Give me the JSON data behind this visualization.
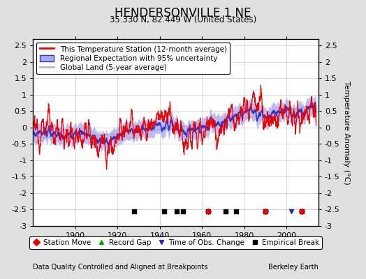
{
  "title": "HENDERSONVILLE 1 NE",
  "subtitle": "35.330 N, 82.449 W (United States)",
  "ylabel": "Temperature Anomaly (°C)",
  "xlabel_note": "Data Quality Controlled and Aligned at Breakpoints",
  "credit": "Berkeley Earth",
  "ylim": [
    -3.0,
    2.7
  ],
  "xlim": [
    1880,
    2015
  ],
  "yticks": [
    -3,
    -2.5,
    -2,
    -1.5,
    -1,
    -0.5,
    0,
    0.5,
    1,
    1.5,
    2,
    2.5
  ],
  "xticks": [
    1900,
    1920,
    1940,
    1960,
    1980,
    2000
  ],
  "bg_color": "#e0e0e0",
  "plot_bg_color": "#ffffff",
  "station_color": "#ee0000",
  "regional_color": "#3333cc",
  "regional_fill": "#aaaaee",
  "global_color": "#bbbbbb",
  "station_move_times": [
    1963,
    1990,
    2007
  ],
  "record_gap_times": [],
  "obs_change_times": [
    2002
  ],
  "empirical_break_times": [
    1928,
    1942,
    1948,
    1951,
    1963,
    1971,
    1976,
    1990,
    2007
  ],
  "legend_items": [
    "This Temperature Station (12-month average)",
    "Regional Expectation with 95% uncertainty",
    "Global Land (5-year average)"
  ],
  "marker_legend_items": [
    "Station Move",
    "Record Gap",
    "Time of Obs. Change",
    "Empirical Break"
  ]
}
